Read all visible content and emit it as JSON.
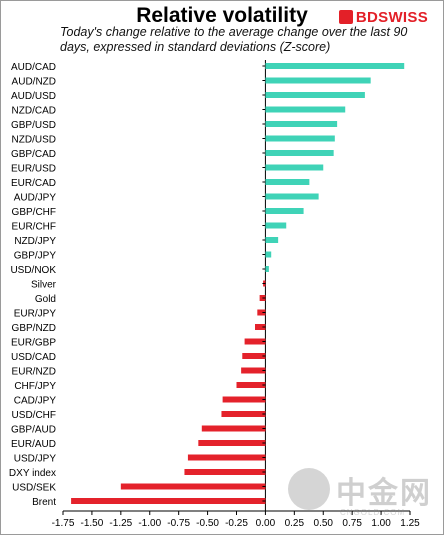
{
  "header": {
    "title": "Relative volatility",
    "subtitle": "Today's change relative to the average change over the last 90 days, expressed in standard deviations (Z-score)",
    "logo": "BDSWISS"
  },
  "watermark": {
    "cn": "中金网",
    "en": "CNGOLD.COM"
  },
  "colors": {
    "positive": "#3fd3b7",
    "negative": "#e4222b",
    "logo": "#e32028"
  },
  "chart_data": {
    "type": "bar",
    "orientation": "horizontal",
    "categories": [
      "AUD/CAD",
      "AUD/NZD",
      "AUD/USD",
      "NZD/CAD",
      "GBP/USD",
      "NZD/USD",
      "GBP/CAD",
      "EUR/USD",
      "EUR/CAD",
      "AUD/JPY",
      "GBP/CHF",
      "EUR/CHF",
      "NZD/JPY",
      "GBP/JPY",
      "USD/NOK",
      "Silver",
      "Gold",
      "EUR/JPY",
      "GBP/NZD",
      "EUR/GBP",
      "USD/CAD",
      "EUR/NZD",
      "CHF/JPY",
      "CAD/JPY",
      "USD/CHF",
      "GBP/AUD",
      "EUR/AUD",
      "USD/JPY",
      "DXY index",
      "USD/SEK",
      "Brent"
    ],
    "values": [
      1.2,
      0.91,
      0.86,
      0.69,
      0.62,
      0.6,
      0.59,
      0.5,
      0.38,
      0.46,
      0.33,
      0.18,
      0.11,
      0.05,
      0.03,
      -0.02,
      -0.05,
      -0.07,
      -0.09,
      -0.18,
      -0.2,
      -0.21,
      -0.25,
      -0.37,
      -0.38,
      -0.55,
      -0.58,
      -0.67,
      -0.7,
      -1.25,
      -1.68
    ],
    "xlim": [
      -1.75,
      1.25
    ],
    "xticks": [
      "-1.75",
      "-1.50",
      "-1.25",
      "-1.00",
      "-0.75",
      "-0.50",
      "-0.25",
      "0.00",
      "0.25",
      "0.50",
      "0.75",
      "1.00",
      "1.25"
    ],
    "title": "Relative volatility",
    "xlabel": "",
    "ylabel": "",
    "grid": false,
    "legend": "none"
  }
}
